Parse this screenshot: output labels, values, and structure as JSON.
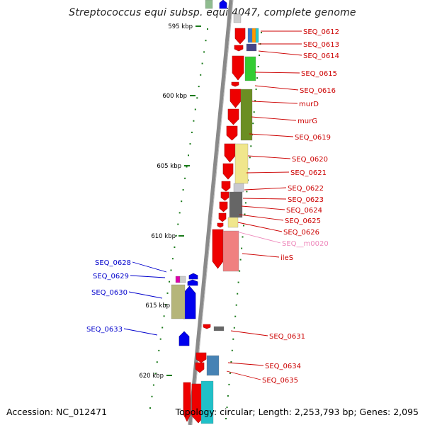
{
  "title": "Streptococcus equi subsp. equi 4047, complete genome",
  "accession_text": "Accession: NC_012471",
  "topology_text": "Topology: circular; Length: 2,253,793 bp; Genes: 2,095",
  "colors": {
    "forward_label": "#cc0000",
    "reverse_label": "#0000cc",
    "rna_label": "#ee88bb",
    "scale_tick": "#1a7a1a",
    "backbone": "#888888"
  },
  "scale_ticks": [
    "595 kbp",
    "600 kbp",
    "605 kbp",
    "610 kbp",
    "615 kbp",
    "620 kbp"
  ],
  "gene_labels_right": [
    "SEQ_0612",
    "SEQ_0613",
    "SEQ_0614",
    "SEQ_0615",
    "SEQ_0616",
    "murD",
    "murG",
    "SEQ_0619",
    "SEQ_0620",
    "SEQ_0621",
    "SEQ_0622",
    "SEQ_0623",
    "SEQ_0624",
    "SEQ_0625",
    "SEQ_0626",
    "SEQ__m0020",
    "ileS",
    "SEQ_0631",
    "SEQ_0634",
    "SEQ_0635"
  ],
  "gene_labels_left": [
    "SEQ_0628",
    "SEQ_0629",
    "SEQ_0630",
    "SEQ_0633"
  ]
}
